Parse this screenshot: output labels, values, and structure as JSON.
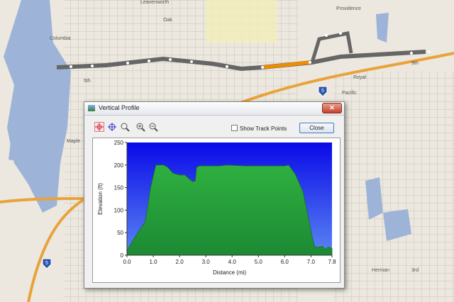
{
  "map": {
    "labels": [
      "Leavenworth",
      "Oak",
      "Providence",
      "Columbia",
      "Royal",
      "Pacific",
      "Maple",
      "9th",
      "Herman",
      "3rd",
      "5th"
    ],
    "shields": [
      "5",
      "5"
    ]
  },
  "window": {
    "title": "Vertical Profile",
    "checkbox": "Show Track Points",
    "button": "Close"
  },
  "chart_data": {
    "type": "area",
    "xlabel": "Distance (mi)",
    "ylabel": "Elevation (ft)",
    "x": [
      0,
      0.3,
      0.7,
      0.9,
      1.1,
      1.4,
      1.55,
      1.75,
      2.0,
      2.2,
      2.35,
      2.5,
      2.6,
      2.65,
      2.75,
      3.5,
      3.8,
      4.5,
      6.0,
      6.15,
      6.4,
      6.7,
      7.05,
      7.15,
      7.3,
      7.45,
      7.55,
      7.65,
      7.8
    ],
    "series": [
      {
        "values": [
          10,
          40,
          75,
          150,
          200,
          200,
          195,
          182,
          178,
          178,
          170,
          163,
          165,
          195,
          198,
          198,
          200,
          198,
          198,
          200,
          180,
          140,
          40,
          18,
          18,
          20,
          12,
          18,
          15
        ],
        "color": "#22a03a"
      }
    ],
    "xlim": [
      0,
      7.8
    ],
    "ylim": [
      0,
      250
    ],
    "xticks": [
      {
        "value": 0,
        "label": "0.0"
      },
      {
        "value": 1,
        "label": "1.0"
      },
      {
        "value": 2,
        "label": "2.0"
      },
      {
        "value": 3,
        "label": "3.0"
      },
      {
        "value": 4,
        "label": "4.0"
      },
      {
        "value": 5,
        "label": "5.0"
      },
      {
        "value": 6,
        "label": "6.0"
      },
      {
        "value": 7,
        "label": "7.0"
      },
      7.8
    ],
    "yticks": [
      0,
      50,
      100,
      150,
      200,
      250
    ]
  }
}
